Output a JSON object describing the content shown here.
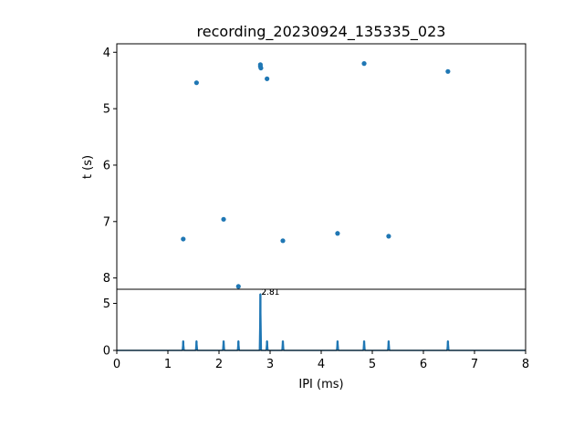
{
  "colors": {
    "series": "#1f77b4",
    "axis": "#000000",
    "background": "#ffffff"
  },
  "chart_data": [
    {
      "type": "scatter",
      "title": "recording_20230924_135335_023",
      "xlabel": "",
      "ylabel": "t (s)",
      "xlim": [
        0,
        8
      ],
      "ylim": [
        3.85,
        8.2
      ],
      "y_inverted": true,
      "shares_x_axis_with_panel_below": true,
      "yticks": [
        4,
        5,
        6,
        7,
        8
      ],
      "ytick_labels": [
        "4",
        "5",
        "6",
        "7",
        "8"
      ],
      "grid": false,
      "points": [
        {
          "x": 1.56,
          "y": 4.54
        },
        {
          "x": 2.81,
          "y": 4.22
        },
        {
          "x": 2.81,
          "y": 4.25
        },
        {
          "x": 2.82,
          "y": 4.28
        },
        {
          "x": 2.94,
          "y": 4.47
        },
        {
          "x": 4.84,
          "y": 4.2
        },
        {
          "x": 6.48,
          "y": 4.34
        },
        {
          "x": 1.3,
          "y": 7.31
        },
        {
          "x": 2.09,
          "y": 6.96
        },
        {
          "x": 3.25,
          "y": 7.34
        },
        {
          "x": 4.32,
          "y": 7.21
        },
        {
          "x": 5.32,
          "y": 7.26
        },
        {
          "x": 2.38,
          "y": 8.15
        }
      ]
    },
    {
      "type": "line",
      "xlabel": "IPI (ms)",
      "ylabel": "",
      "xlim": [
        0,
        8
      ],
      "ylim": [
        0,
        6.5
      ],
      "xticks": [
        0,
        1,
        2,
        3,
        4,
        5,
        6,
        7,
        8
      ],
      "xtick_labels": [
        "0",
        "1",
        "2",
        "3",
        "4",
        "5",
        "6",
        "7",
        "8"
      ],
      "yticks": [
        0,
        5
      ],
      "ytick_labels": [
        "0",
        "5"
      ],
      "grid": false,
      "spikes": [
        {
          "x": 1.3,
          "y": 1.0
        },
        {
          "x": 1.56,
          "y": 1.0
        },
        {
          "x": 2.09,
          "y": 1.0
        },
        {
          "x": 2.38,
          "y": 1.0
        },
        {
          "x": 2.81,
          "y": 6.0
        },
        {
          "x": 2.94,
          "y": 1.0
        },
        {
          "x": 3.25,
          "y": 1.0
        },
        {
          "x": 4.32,
          "y": 1.0
        },
        {
          "x": 4.84,
          "y": 1.0
        },
        {
          "x": 5.32,
          "y": 1.0
        },
        {
          "x": 6.48,
          "y": 1.0
        }
      ],
      "annotations": [
        {
          "text": "2.8",
          "x": 2.81,
          "y": 6.0
        },
        {
          "text": "2.81",
          "x": 2.81,
          "y": 6.0
        }
      ]
    }
  ]
}
